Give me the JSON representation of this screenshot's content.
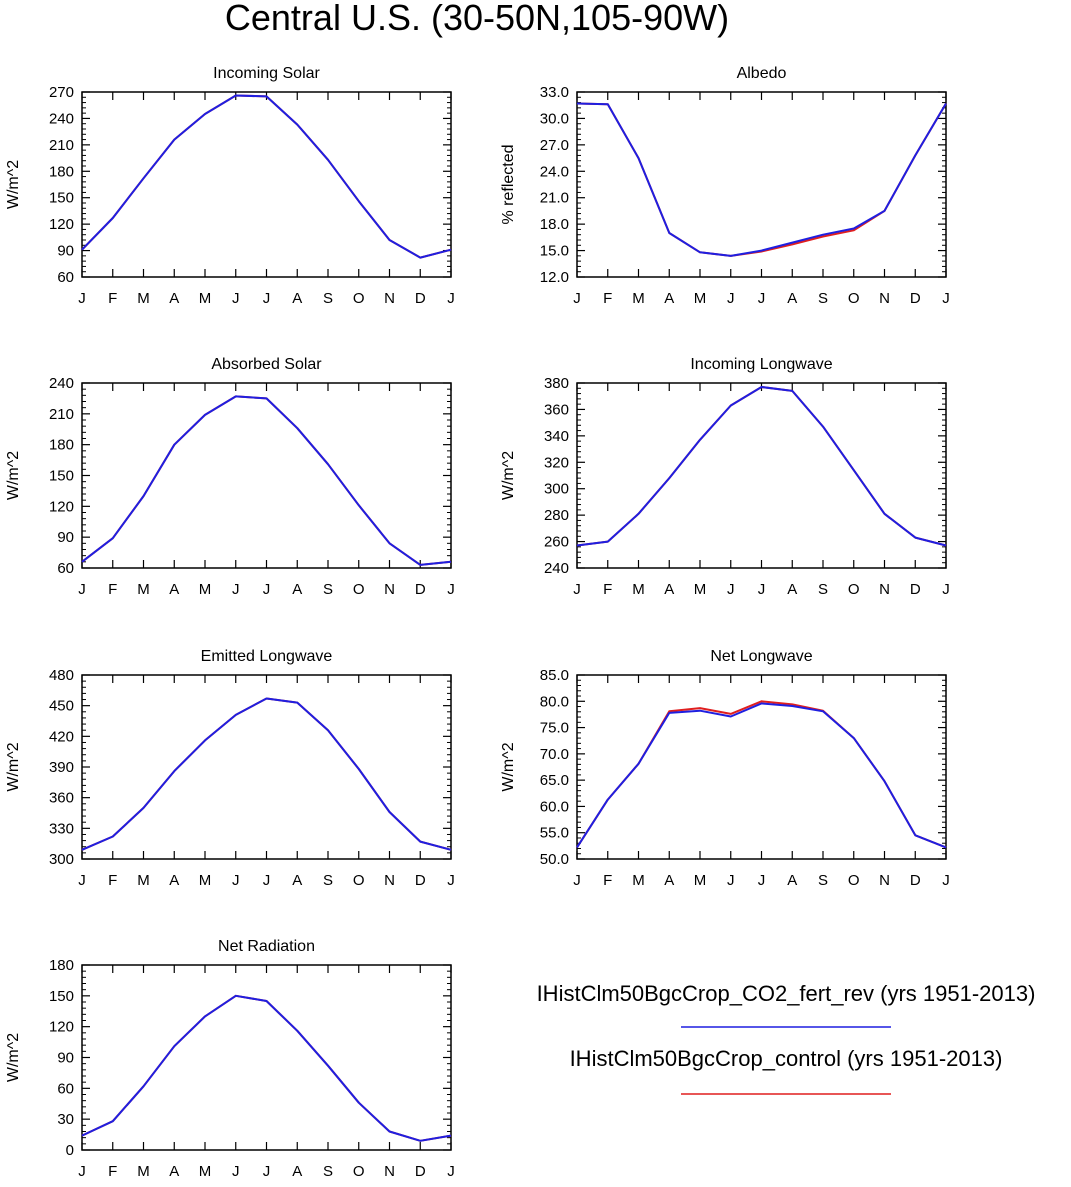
{
  "figure": {
    "title": "Central U.S. (30-50N,105-90W)"
  },
  "legend": [
    {
      "label": "IHistClm50BgcCrop_CO2_fert_rev (yrs 1951-2013)",
      "color": "#1f1fe0"
    },
    {
      "label": "IHistClm50BgcCrop_control (yrs 1951-2013)",
      "color": "#e01f1f"
    }
  ],
  "chart_data": [
    {
      "type": "line",
      "title": "Incoming Solar",
      "ylabel": "W/m^2",
      "x": [
        "J",
        "F",
        "M",
        "A",
        "M",
        "J",
        "J",
        "A",
        "S",
        "O",
        "N",
        "D",
        "J"
      ],
      "ylim": [
        60,
        270
      ],
      "yticks": [
        60,
        90,
        120,
        150,
        180,
        210,
        240,
        270
      ],
      "ytick_labels": [
        "60",
        "90",
        "120",
        "150",
        "180",
        "210",
        "240",
        "270"
      ],
      "series": [
        {
          "name": "IHistClm50BgcCrop_CO2_fert_rev (yrs 1951-2013)",
          "color": "#e01f1f",
          "values": [
            91,
            127,
            172,
            216,
            245,
            266,
            265,
            233,
            193,
            146,
            102,
            82,
            91
          ]
        },
        {
          "name": "IHistClm50BgcCrop_control (yrs 1951-2013)",
          "color": "#1f1fe0",
          "values": [
            91,
            127,
            172,
            216,
            245,
            266,
            265,
            233,
            193,
            146,
            102,
            82,
            91
          ]
        }
      ]
    },
    {
      "type": "line",
      "title": "Albedo",
      "ylabel": "% reflected",
      "x": [
        "J",
        "F",
        "M",
        "A",
        "M",
        "J",
        "J",
        "A",
        "S",
        "O",
        "N",
        "D",
        "J"
      ],
      "ylim": [
        12,
        33
      ],
      "yticks": [
        12,
        15,
        18,
        21,
        24,
        27,
        30,
        33
      ],
      "ytick_labels": [
        "12.0",
        "15.0",
        "18.0",
        "21.0",
        "24.0",
        "27.0",
        "30.0",
        "33.0"
      ],
      "series": [
        {
          "name": "IHistClm50BgcCrop_CO2_fert_rev (yrs 1951-2013)",
          "color": "#e01f1f",
          "values": [
            31.7,
            31.6,
            25.5,
            17.0,
            14.8,
            14.4,
            14.9,
            15.7,
            16.6,
            17.3,
            19.5,
            25.8,
            31.7
          ]
        },
        {
          "name": "IHistClm50BgcCrop_control (yrs 1951-2013)",
          "color": "#1f1fe0",
          "values": [
            31.7,
            31.6,
            25.5,
            17.0,
            14.8,
            14.4,
            15.0,
            15.9,
            16.8,
            17.5,
            19.5,
            25.8,
            31.7
          ]
        }
      ]
    },
    {
      "type": "line",
      "title": "Absorbed Solar",
      "ylabel": "W/m^2",
      "x": [
        "J",
        "F",
        "M",
        "A",
        "M",
        "J",
        "J",
        "A",
        "S",
        "O",
        "N",
        "D",
        "J"
      ],
      "ylim": [
        60,
        240
      ],
      "yticks": [
        60,
        90,
        120,
        150,
        180,
        210,
        240
      ],
      "ytick_labels": [
        "60",
        "90",
        "120",
        "150",
        "180",
        "210",
        "240"
      ],
      "series": [
        {
          "name": "IHistClm50BgcCrop_CO2_fert_rev (yrs 1951-2013)",
          "color": "#e01f1f",
          "values": [
            66,
            89,
            130,
            180,
            209,
            227,
            225,
            196,
            161,
            121,
            84,
            63,
            66
          ]
        },
        {
          "name": "IHistClm50BgcCrop_control (yrs 1951-2013)",
          "color": "#1f1fe0",
          "values": [
            66,
            89,
            130,
            180,
            209,
            227,
            225,
            196,
            161,
            121,
            84,
            63,
            66
          ]
        }
      ]
    },
    {
      "type": "line",
      "title": "Incoming Longwave",
      "ylabel": "W/m^2",
      "x": [
        "J",
        "F",
        "M",
        "A",
        "M",
        "J",
        "J",
        "A",
        "S",
        "O",
        "N",
        "D",
        "J"
      ],
      "ylim": [
        240,
        380
      ],
      "yticks": [
        240,
        260,
        280,
        300,
        320,
        340,
        360,
        380
      ],
      "ytick_labels": [
        "240",
        "260",
        "280",
        "300",
        "320",
        "340",
        "360",
        "380"
      ],
      "series": [
        {
          "name": "IHistClm50BgcCrop_CO2_fert_rev (yrs 1951-2013)",
          "color": "#e01f1f",
          "values": [
            257,
            260,
            281,
            308,
            337,
            363,
            377,
            374,
            347,
            314,
            281,
            263,
            257
          ]
        },
        {
          "name": "IHistClm50BgcCrop_control (yrs 1951-2013)",
          "color": "#1f1fe0",
          "values": [
            257,
            260,
            281,
            308,
            337,
            363,
            377,
            374,
            347,
            314,
            281,
            263,
            257
          ]
        }
      ]
    },
    {
      "type": "line",
      "title": "Emitted Longwave",
      "ylabel": "W/m^2",
      "x": [
        "J",
        "F",
        "M",
        "A",
        "M",
        "J",
        "J",
        "A",
        "S",
        "O",
        "N",
        "D",
        "J"
      ],
      "ylim": [
        300,
        480
      ],
      "yticks": [
        300,
        330,
        360,
        390,
        420,
        450,
        480
      ],
      "ytick_labels": [
        "300",
        "330",
        "360",
        "390",
        "420",
        "450",
        "480"
      ],
      "series": [
        {
          "name": "IHistClm50BgcCrop_CO2_fert_rev (yrs 1951-2013)",
          "color": "#e01f1f",
          "values": [
            309,
            322,
            350,
            386,
            416,
            441,
            457,
            453,
            426,
            388,
            346,
            317,
            309
          ]
        },
        {
          "name": "IHistClm50BgcCrop_control (yrs 1951-2013)",
          "color": "#1f1fe0",
          "values": [
            309,
            322,
            350,
            386,
            416,
            441,
            457,
            453,
            426,
            388,
            346,
            317,
            309
          ]
        }
      ]
    },
    {
      "type": "line",
      "title": "Net Longwave",
      "ylabel": "W/m^2",
      "x": [
        "J",
        "F",
        "M",
        "A",
        "M",
        "J",
        "J",
        "A",
        "S",
        "O",
        "N",
        "D",
        "J"
      ],
      "ylim": [
        50,
        85
      ],
      "yticks": [
        50,
        55,
        60,
        65,
        70,
        75,
        80,
        85
      ],
      "ytick_labels": [
        "50.0",
        "55.0",
        "60.0",
        "65.0",
        "70.0",
        "75.0",
        "80.0",
        "85.0"
      ],
      "series": [
        {
          "name": "IHistClm50BgcCrop_CO2_fert_rev (yrs 1951-2013)",
          "color": "#e01f1f",
          "values": [
            52.2,
            61.3,
            68.1,
            78.1,
            78.7,
            77.6,
            80.0,
            79.4,
            78.2,
            73.0,
            64.8,
            54.5,
            52.2
          ]
        },
        {
          "name": "IHistClm50BgcCrop_control (yrs 1951-2013)",
          "color": "#1f1fe0",
          "values": [
            52.2,
            61.3,
            68.1,
            77.8,
            78.2,
            77.1,
            79.6,
            79.1,
            78.1,
            73.0,
            64.8,
            54.5,
            52.2
          ]
        }
      ]
    },
    {
      "type": "line",
      "title": "Net Radiation",
      "ylabel": "W/m^2",
      "x": [
        "J",
        "F",
        "M",
        "A",
        "M",
        "J",
        "J",
        "A",
        "S",
        "O",
        "N",
        "D",
        "J"
      ],
      "ylim": [
        0,
        180
      ],
      "yticks": [
        0,
        30,
        60,
        90,
        120,
        150,
        180
      ],
      "ytick_labels": [
        "0",
        "30",
        "60",
        "90",
        "120",
        "150",
        "180"
      ],
      "series": [
        {
          "name": "IHistClm50BgcCrop_CO2_fert_rev (yrs 1951-2013)",
          "color": "#e01f1f",
          "values": [
            14,
            28,
            62,
            101,
            130,
            150,
            145,
            116,
            82,
            46,
            18,
            9,
            14
          ]
        },
        {
          "name": "IHistClm50BgcCrop_control (yrs 1951-2013)",
          "color": "#1f1fe0",
          "values": [
            14,
            28,
            62,
            101,
            130,
            150,
            145,
            116,
            82,
            46,
            18,
            9,
            14
          ]
        }
      ]
    }
  ]
}
